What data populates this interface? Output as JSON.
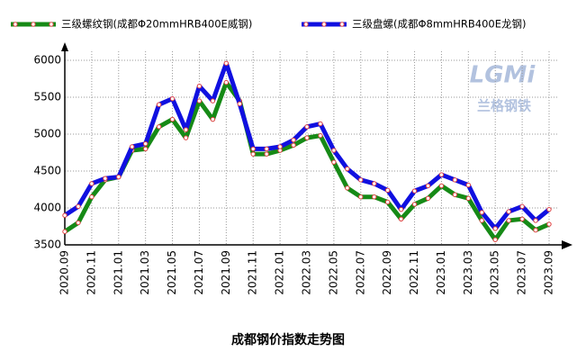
{
  "chart_data": {
    "type": "line",
    "title": "成都钢价指数走势图",
    "watermark": [
      "LGMi",
      "兰格钢铁"
    ],
    "categories": [
      "2020.09",
      null,
      "2020.11",
      null,
      "2021.01",
      null,
      "2021.03",
      null,
      "2021.05",
      null,
      "2021.07",
      null,
      "2021.09",
      null,
      "2021.11",
      null,
      "2022.01",
      null,
      "2022.03",
      null,
      "2022.05",
      null,
      "2022.07",
      null,
      "2022.09",
      null,
      "2022.11",
      null,
      "2023.01",
      null,
      "2023.03",
      null,
      "2023.05",
      null,
      "2023.07",
      null,
      "2023.09"
    ],
    "series": [
      {
        "name": "三级螺纹钢(成都Φ20mmHRB400E威钢)",
        "color": "#168a16",
        "values": [
          3680,
          3800,
          4150,
          4380,
          4420,
          4780,
          4800,
          5100,
          5200,
          4950,
          5450,
          5200,
          5700,
          5450,
          4730,
          4730,
          4780,
          4850,
          4950,
          4980,
          4620,
          4270,
          4150,
          4150,
          4080,
          3850,
          4050,
          4130,
          4300,
          4180,
          4130,
          3830,
          3570,
          3830,
          3850,
          3700,
          3780
        ]
      },
      {
        "name": "三级盘螺(成都Φ8mmHRB400E龙钢)",
        "color": "#1010e0",
        "values": [
          3900,
          4020,
          4330,
          4400,
          4420,
          4830,
          4870,
          5400,
          5480,
          5060,
          5650,
          5450,
          5960,
          5410,
          4800,
          4800,
          4830,
          4920,
          5100,
          5140,
          4780,
          4530,
          4380,
          4330,
          4240,
          3980,
          4230,
          4300,
          4450,
          4380,
          4310,
          3940,
          3720,
          3950,
          4020,
          3830,
          3980
        ]
      }
    ],
    "marker_color": "#e04040",
    "ylim": [
      3500,
      6000
    ],
    "yticks": [
      3500,
      4000,
      4500,
      5000,
      5500,
      6000
    ],
    "grid": true
  }
}
